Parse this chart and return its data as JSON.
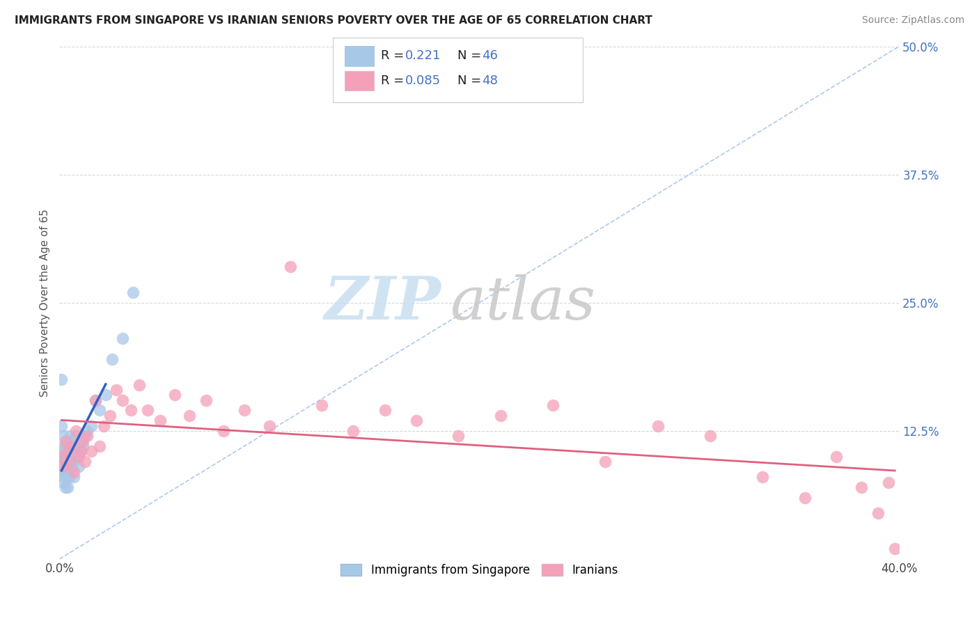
{
  "title": "IMMIGRANTS FROM SINGAPORE VS IRANIAN SENIORS POVERTY OVER THE AGE OF 65 CORRELATION CHART",
  "source": "Source: ZipAtlas.com",
  "ylabel": "Seniors Poverty Over the Age of 65",
  "xlim": [
    0.0,
    0.4
  ],
  "ylim": [
    0.0,
    0.5
  ],
  "xticks": [
    0.0,
    0.1,
    0.2,
    0.3,
    0.4
  ],
  "xticklabels": [
    "0.0%",
    "",
    "",
    "",
    "40.0%"
  ],
  "yticks": [
    0.0,
    0.125,
    0.25,
    0.375,
    0.5
  ],
  "yticklabels": [
    "",
    "12.5%",
    "25.0%",
    "37.5%",
    "50.0%"
  ],
  "color_singapore": "#a8c8e8",
  "color_iranian": "#f4a0b8",
  "line_color_singapore": "#3060c0",
  "line_color_iranian": "#e06080",
  "refline_color": "#b0c8e8",
  "grid_color": "#d0d8e0",
  "background_color": "#ffffff",
  "singapore_x": [
    0.001,
    0.001,
    0.001,
    0.001,
    0.002,
    0.002,
    0.002,
    0.002,
    0.002,
    0.002,
    0.003,
    0.003,
    0.003,
    0.003,
    0.003,
    0.004,
    0.004,
    0.004,
    0.004,
    0.004,
    0.004,
    0.005,
    0.005,
    0.005,
    0.005,
    0.006,
    0.006,
    0.006,
    0.007,
    0.007,
    0.007,
    0.008,
    0.008,
    0.009,
    0.01,
    0.01,
    0.011,
    0.012,
    0.013,
    0.015,
    0.017,
    0.019,
    0.022,
    0.025,
    0.03,
    0.035
  ],
  "singapore_y": [
    0.1,
    0.13,
    0.085,
    0.175,
    0.095,
    0.11,
    0.08,
    0.105,
    0.075,
    0.12,
    0.09,
    0.1,
    0.085,
    0.11,
    0.07,
    0.095,
    0.105,
    0.08,
    0.115,
    0.09,
    0.07,
    0.1,
    0.12,
    0.08,
    0.095,
    0.105,
    0.09,
    0.115,
    0.095,
    0.11,
    0.08,
    0.1,
    0.12,
    0.09,
    0.105,
    0.115,
    0.11,
    0.12,
    0.125,
    0.13,
    0.155,
    0.145,
    0.16,
    0.195,
    0.215,
    0.26
  ],
  "iranian_x": [
    0.001,
    0.002,
    0.003,
    0.004,
    0.005,
    0.006,
    0.007,
    0.008,
    0.009,
    0.01,
    0.011,
    0.012,
    0.013,
    0.015,
    0.017,
    0.019,
    0.021,
    0.024,
    0.027,
    0.03,
    0.034,
    0.038,
    0.042,
    0.048,
    0.055,
    0.062,
    0.07,
    0.078,
    0.088,
    0.1,
    0.11,
    0.125,
    0.14,
    0.155,
    0.17,
    0.19,
    0.21,
    0.235,
    0.26,
    0.285,
    0.31,
    0.335,
    0.355,
    0.37,
    0.382,
    0.39,
    0.395,
    0.398
  ],
  "iranian_y": [
    0.1,
    0.09,
    0.115,
    0.105,
    0.095,
    0.11,
    0.085,
    0.125,
    0.1,
    0.105,
    0.115,
    0.095,
    0.12,
    0.105,
    0.155,
    0.11,
    0.13,
    0.14,
    0.165,
    0.155,
    0.145,
    0.17,
    0.145,
    0.135,
    0.16,
    0.14,
    0.155,
    0.125,
    0.145,
    0.13,
    0.285,
    0.15,
    0.125,
    0.145,
    0.135,
    0.12,
    0.14,
    0.15,
    0.095,
    0.13,
    0.12,
    0.08,
    0.06,
    0.1,
    0.07,
    0.045,
    0.075,
    0.01
  ]
}
